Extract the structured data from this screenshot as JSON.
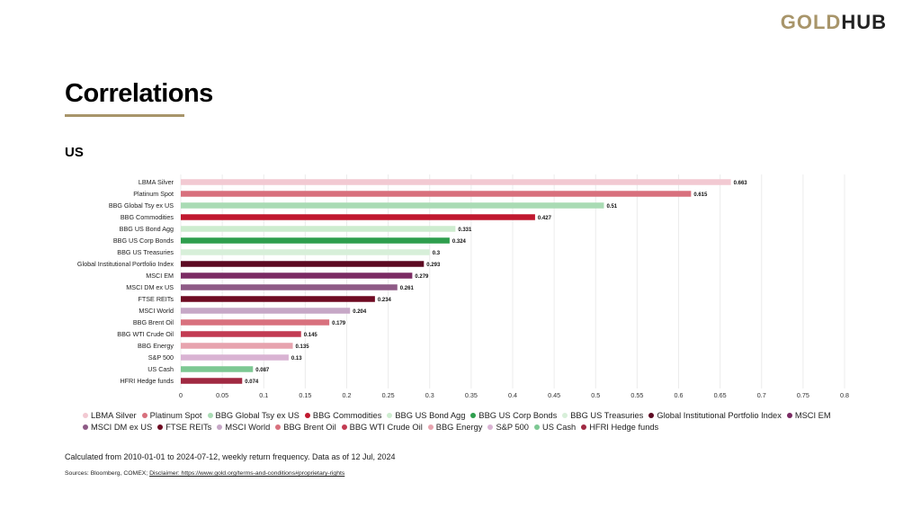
{
  "header": {
    "logo_part1": "GOLD",
    "logo_part2": "HUB",
    "title": "Correlations",
    "subtitle": "US"
  },
  "colors": {
    "accent": "#a8956a"
  },
  "footer": {
    "note": "Calculated from 2010-01-01 to 2024-07-12, weekly return frequency. Data as of 12 Jul, 2024",
    "sources_prefix": "Sources: Bloomberg, COMEX;",
    "disclaimer": "Disclaimer: https://www.gold.org/terms-and-conditions#proprietary-rights"
  },
  "chart_data": {
    "type": "bar",
    "orientation": "horizontal",
    "title": "",
    "xlabel": "",
    "ylabel": "",
    "xlim": [
      0,
      0.8
    ],
    "x_ticks": [
      "0",
      "0.05",
      "0.1",
      "0.15",
      "0.2",
      "0.25",
      "0.3",
      "0.35",
      "0.4",
      "0.45",
      "0.5",
      "0.55",
      "0.6",
      "0.65",
      "0.7",
      "0.75",
      "0.8"
    ],
    "grid": true,
    "legend_position": "bottom",
    "categories": [
      "LBMA Silver",
      "Platinum Spot",
      "BBG Global Tsy ex US",
      "BBG Commodities",
      "BBG US Bond Agg",
      "BBG US Corp Bonds",
      "BBG US Treasuries",
      "Global Institutional Portfolio Index",
      "MSCI EM",
      "MSCI DM ex US",
      "FTSE REITs",
      "MSCI World",
      "BBG Brent Oil",
      "BBG WTI Crude Oil",
      "BBG Energy",
      "S&P 500",
      "US Cash",
      "HFRI Hedge funds"
    ],
    "values": [
      0.663,
      0.615,
      0.51,
      0.427,
      0.331,
      0.324,
      0.3,
      0.293,
      0.279,
      0.261,
      0.234,
      0.204,
      0.179,
      0.145,
      0.135,
      0.13,
      0.087,
      0.074
    ],
    "value_labels": [
      "0.663",
      "0.615",
      "0.51",
      "0.427",
      "0.331",
      "0.324",
      "0.3",
      "0.293",
      "0.279",
      "0.261",
      "0.234",
      "0.204",
      "0.179",
      "0.145",
      "0.135",
      "0.13",
      "0.087",
      "0.074"
    ],
    "colors": [
      "#f2c9d2",
      "#d8707d",
      "#a9dbb4",
      "#c0182f",
      "#cdeccf",
      "#2e9e4d",
      "#d7efd9",
      "#5c0a22",
      "#7a2a63",
      "#8e5a86",
      "#6e0a22",
      "#c6a7c6",
      "#d8707d",
      "#c23b52",
      "#e7a3ae",
      "#d9b3d3",
      "#7dc893",
      "#a02942"
    ]
  }
}
